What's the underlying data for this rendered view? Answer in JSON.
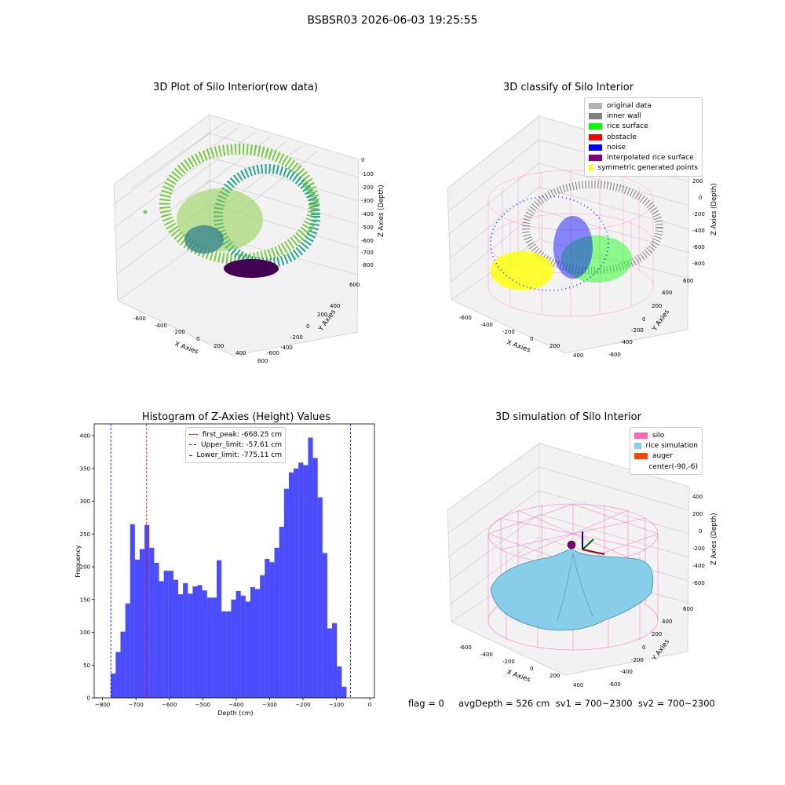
{
  "figure_title": "BSBSR03 2026-06-03 19:25:55",
  "panels": {
    "raw": {
      "title": "3D Plot of Silo Interior(row data)",
      "xlabel": "X Axies",
      "ylabel": "Y Axies",
      "zlabel": "Z Axies (Depth)",
      "xticks": [
        "-600",
        "-400",
        "-200",
        "0",
        "200",
        "400",
        "600"
      ],
      "yticks": [
        "600",
        "400",
        "200",
        "0",
        "-200",
        "-400",
        "-600"
      ],
      "zticks": [
        "0",
        "-100",
        "-200",
        "-300",
        "-400",
        "-500",
        "-600",
        "-700",
        "-800"
      ]
    },
    "classify": {
      "title": "3D classify of Silo Interior",
      "xlabel": "X Axies",
      "ylabel": "Y Axies",
      "zlabel": "Z Axies (Depth)",
      "xticks": [
        "-600",
        "-400",
        "-200",
        "0",
        "200",
        "400"
      ],
      "yticks": [
        "600",
        "400",
        "200",
        "0",
        "-200",
        "-400",
        "-600"
      ],
      "zticks": [
        "200",
        "0",
        "-200",
        "-400",
        "-600",
        "-800"
      ],
      "legend": [
        {
          "label": "original data",
          "color": "#b3b3b3"
        },
        {
          "label": "inner wall",
          "color": "#808080"
        },
        {
          "label": "rice surface",
          "color": "#00ff00"
        },
        {
          "label": "obstacle",
          "color": "#ff0000"
        },
        {
          "label": "noise",
          "color": "#0000ff"
        },
        {
          "label": "interpolated rice surface",
          "color": "#800080"
        },
        {
          "label": "symmetric generated points",
          "color": "#ffff00"
        }
      ]
    },
    "simulation": {
      "title": "3D simulation of Silo Interior",
      "xlabel": "X Axies",
      "ylabel": "Y Axies",
      "zlabel": "Z Axies (Depth)",
      "xticks": [
        "-600",
        "-400",
        "-200",
        "0",
        "200",
        "400"
      ],
      "yticks": [
        "600",
        "400",
        "200",
        "0",
        "-200",
        "-400",
        "-600"
      ],
      "zticks": [
        "400",
        "200",
        "0",
        "-200",
        "-400",
        "-600"
      ],
      "legend": [
        {
          "label": "silo",
          "color": "#ff69b4"
        },
        {
          "label": "rice simulation",
          "color": "#87ceeb"
        },
        {
          "label": "auger",
          "color": "#ff4500"
        },
        {
          "label": "center(-90,-6)",
          "color": ""
        }
      ]
    }
  },
  "status_text": "flag = 0     avgDepth = 526 cm  sv1 = 700~2300  sv2 = 700~2300",
  "chart_data": [
    {
      "type": "bar",
      "title": "Histogram of Z-Axies (Height) Values",
      "xlabel": "Depth (cm)",
      "ylabel": "Frequency",
      "xlim": [
        -825,
        14
      ],
      "ylim": [
        0,
        418
      ],
      "xticks": [
        -800,
        -700,
        -600,
        -500,
        -400,
        -300,
        -200,
        -100,
        0
      ],
      "yticks": [
        0,
        50,
        100,
        150,
        200,
        250,
        300,
        350,
        400
      ],
      "bar_color": "#0000ff",
      "bin_start": -775.11,
      "bin_width": 14.4,
      "values": [
        37,
        70,
        101,
        144,
        265,
        211,
        227,
        264,
        229,
        206,
        178,
        194,
        194,
        180,
        158,
        175,
        159,
        170,
        172,
        164,
        153,
        153,
        210,
        132,
        132,
        150,
        163,
        156,
        147,
        169,
        166,
        187,
        212,
        207,
        229,
        261,
        319,
        344,
        350,
        359,
        355,
        397,
        366,
        306,
        221,
        106,
        114,
        48,
        17
      ],
      "vlines": [
        {
          "label": "first_peak: -668.25 cm",
          "value": -668.25,
          "color": "#ff0000"
        },
        {
          "label": "Upper_limit: -57.61 cm",
          "value": -57.61,
          "color": "#0000ff"
        },
        {
          "label": "Lower_limit: -775.11 cm",
          "value": -775.11,
          "color": "#0000ff"
        }
      ]
    }
  ]
}
